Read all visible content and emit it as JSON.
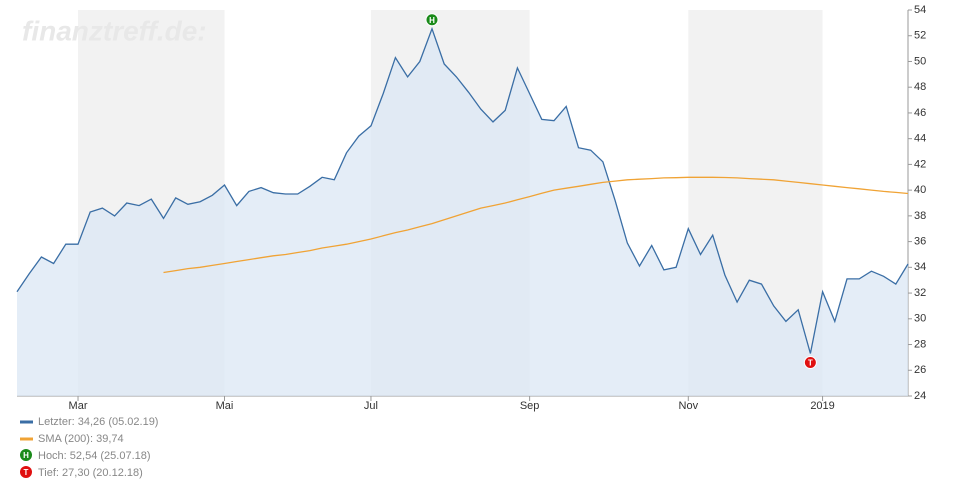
{
  "chart_data": {
    "type": "line",
    "watermark": "finanztreff.de:",
    "categories": [
      null,
      null,
      null,
      null,
      null,
      "Mar",
      null,
      null,
      null,
      null,
      null,
      null,
      null,
      null,
      null,
      null,
      null,
      "Mai",
      null,
      null,
      null,
      null,
      null,
      null,
      null,
      null,
      null,
      null,
      null,
      "Jul",
      null,
      null,
      null,
      null,
      null,
      null,
      null,
      null,
      null,
      null,
      null,
      null,
      "Sep",
      null,
      null,
      null,
      null,
      null,
      null,
      null,
      null,
      null,
      null,
      null,
      null,
      "Nov",
      null,
      null,
      null,
      null,
      null,
      null,
      null,
      null,
      null,
      null,
      "2019",
      null,
      null,
      null,
      null,
      null,
      null,
      null
    ],
    "series": [
      {
        "name": "Letzter: 34,26 (05.02.19)",
        "color": "#3a6ea5",
        "fill": "#dbe7f4",
        "values": [
          32.1,
          33.5,
          34.8,
          34.3,
          35.8,
          35.8,
          38.3,
          38.6,
          38.0,
          39.0,
          38.8,
          39.3,
          37.8,
          39.4,
          38.9,
          39.1,
          39.6,
          40.4,
          38.8,
          39.9,
          40.2,
          39.8,
          39.7,
          39.7,
          40.3,
          41.0,
          40.8,
          42.9,
          44.2,
          45.0,
          47.5,
          50.3,
          48.8,
          50.0,
          52.54,
          49.8,
          48.8,
          47.6,
          46.3,
          45.3,
          46.2,
          49.5,
          47.5,
          45.5,
          45.4,
          46.5,
          43.3,
          43.1,
          42.2,
          39.2,
          35.9,
          34.1,
          35.7,
          33.8,
          34.0,
          37.0,
          35.0,
          36.5,
          33.4,
          31.3,
          33.0,
          32.7,
          31.0,
          29.8,
          30.7,
          27.3,
          32.1,
          29.8,
          33.1,
          33.1,
          33.7,
          33.3,
          32.7,
          34.26
        ]
      },
      {
        "name": "SMA (200): 39,74",
        "color": "#f0a335",
        "values": [
          null,
          null,
          null,
          null,
          null,
          null,
          null,
          null,
          null,
          null,
          null,
          null,
          33.6,
          33.75,
          33.9,
          34.0,
          34.15,
          34.3,
          34.45,
          34.6,
          34.75,
          34.9,
          35.0,
          35.15,
          35.3,
          35.5,
          35.65,
          35.8,
          36.0,
          36.2,
          36.45,
          36.7,
          36.9,
          37.15,
          37.4,
          37.7,
          38.0,
          38.3,
          38.6,
          38.8,
          39.0,
          39.25,
          39.5,
          39.75,
          40.0,
          40.15,
          40.3,
          40.45,
          40.6,
          40.7,
          40.8,
          40.85,
          40.9,
          40.95,
          40.97,
          41.0,
          41.0,
          41.0,
          40.98,
          40.95,
          40.9,
          40.85,
          40.8,
          40.7,
          40.6,
          40.5,
          40.4,
          40.3,
          40.2,
          40.1,
          40.0,
          39.9,
          39.82,
          39.74
        ]
      }
    ],
    "markers": [
      {
        "letter": "H",
        "label": "Hoch: 52,54 (25.07.18)",
        "color": "#1a8a1a"
      },
      {
        "letter": "T",
        "label": "Tief: 27,30 (20.12.18)",
        "color": "#e01010"
      }
    ],
    "ylim": [
      24,
      54
    ],
    "yticks": [
      24,
      26,
      28,
      30,
      32,
      34,
      36,
      38,
      40,
      42,
      44,
      46,
      48,
      50,
      52,
      54
    ],
    "band_color": "#f2f2f2"
  }
}
